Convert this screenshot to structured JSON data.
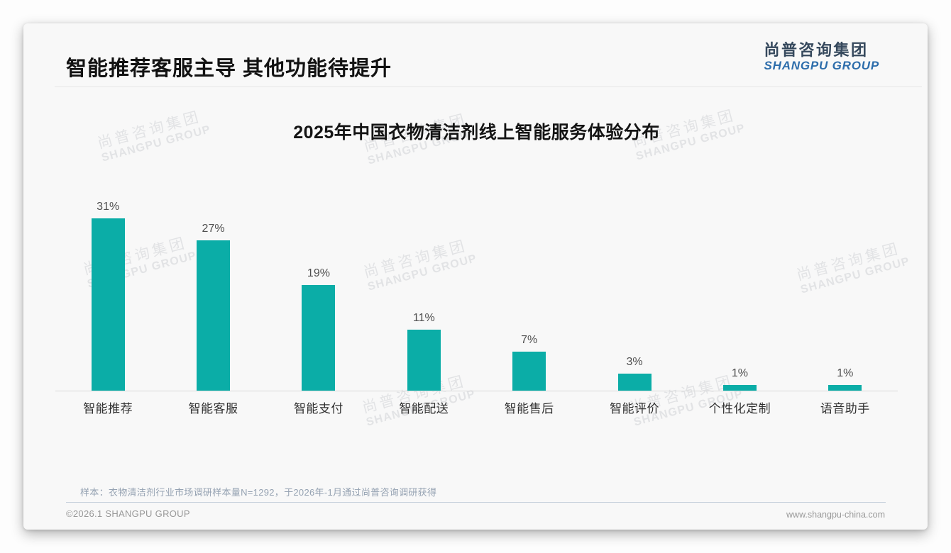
{
  "header": {
    "title": "智能推荐客服主导 其他功能待提升",
    "logo": {
      "cn": "尚普咨询集团",
      "en": "SHANGPU GROUP"
    }
  },
  "watermark": {
    "cn": "尚普咨询集团",
    "en": "SHANGPU GROUP"
  },
  "chart_data": {
    "type": "bar",
    "title": "2025年中国衣物清洁剂线上智能服务体验分布",
    "categories": [
      "智能推荐",
      "智能客服",
      "智能支付",
      "智能配送",
      "智能售后",
      "智能评价",
      "个性化定制",
      "语音助手"
    ],
    "values": [
      31,
      27,
      19,
      11,
      7,
      3,
      1,
      1
    ],
    "value_labels": [
      "31%",
      "27%",
      "19%",
      "11%",
      "7%",
      "3%",
      "1%",
      "1%"
    ],
    "unit": "%",
    "xlabel": "",
    "ylabel": "",
    "ylim": [
      0,
      33
    ],
    "grid": false,
    "legend": false,
    "bar_color": "#0bada7"
  },
  "footnote": "样本：衣物清洁剂行业市场调研样本量N=1292，于2026年-1月通过尚普咨询调研获得",
  "footer": {
    "left": "©2026.1 SHANGPU GROUP",
    "right": "www.shangpu-china.com"
  },
  "colors": {
    "bar": "#0bada7",
    "logo_navy": "#36495d",
    "logo_blue": "#2d6dab",
    "card_bg": "#f8f8f8"
  }
}
